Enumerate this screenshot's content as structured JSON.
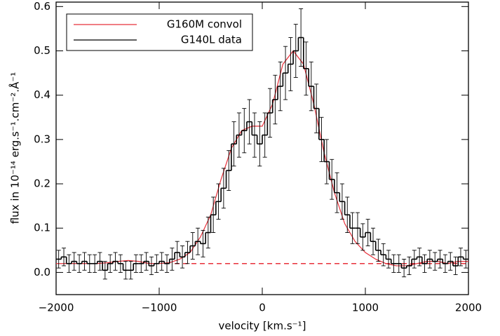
{
  "chart_data": {
    "type": "step",
    "xlabel": "velocity [km.s⁻¹]",
    "ylabel": "flux in 10⁻¹⁴ erg.s⁻¹.cm⁻².Å⁻¹",
    "xlim": [
      -2000,
      2000
    ],
    "ylim": [
      -0.05,
      0.61
    ],
    "xticks": [
      {
        "value": -2000,
        "label": "−2000"
      },
      {
        "value": -1000,
        "label": "−1000"
      },
      0,
      1000,
      2000
    ],
    "yticks": [
      {
        "value": 0,
        "label": "0.0"
      },
      0.1,
      0.2,
      0.3,
      0.4,
      0.5,
      0.6
    ],
    "legend": "upper left",
    "series": [
      {
        "name": "G160M convol",
        "color": "#e8303a",
        "type": "line",
        "x": [
          -2000,
          -1900,
          -1800,
          -1700,
          -1600,
          -1500,
          -1400,
          -1300,
          -1200,
          -1100,
          -1000,
          -900,
          -800,
          -700,
          -600,
          -500,
          -400,
          -300,
          -200,
          -100,
          0,
          100,
          200,
          300,
          400,
          500,
          600,
          700,
          800,
          900,
          1000,
          1100,
          1200,
          1300,
          1400,
          1500,
          1600,
          1700,
          1800,
          1900,
          2000
        ],
        "values": [
          0.02,
          0.02,
          0.02,
          0.02,
          0.02,
          0.022,
          0.025,
          0.027,
          0.025,
          0.02,
          0.02,
          0.022,
          0.03,
          0.045,
          0.08,
          0.13,
          0.21,
          0.28,
          0.32,
          0.33,
          0.33,
          0.38,
          0.47,
          0.5,
          0.47,
          0.38,
          0.27,
          0.18,
          0.11,
          0.07,
          0.045,
          0.03,
          0.02,
          0.015,
          0.015,
          0.02,
          0.025,
          0.025,
          0.02,
          0.025,
          0.025
        ]
      },
      {
        "name": "G140L data",
        "color": "#000000",
        "type": "step",
        "bins": [
          -2000,
          -1950,
          -1900,
          -1850,
          -1800,
          -1750,
          -1700,
          -1650,
          -1600,
          -1550,
          -1500,
          -1450,
          -1400,
          -1350,
          -1300,
          -1250,
          -1200,
          -1150,
          -1100,
          -1050,
          -1000,
          -950,
          -900,
          -850,
          -800,
          -750,
          -700,
          -650,
          -600,
          -550,
          -500,
          -450,
          -400,
          -350,
          -300,
          -250,
          -200,
          -150,
          -100,
          -50,
          0,
          50,
          100,
          150,
          200,
          250,
          300,
          350,
          400,
          450,
          500,
          550,
          600,
          650,
          700,
          750,
          800,
          850,
          900,
          950,
          1000,
          1050,
          1100,
          1150,
          1200,
          1250,
          1300,
          1350,
          1400,
          1450,
          1500,
          1550,
          1600,
          1650,
          1700,
          1750,
          1800,
          1850,
          1900,
          1950,
          2000
        ],
        "values": [
          0.03,
          0.035,
          0.02,
          0.025,
          0.02,
          0.025,
          0.02,
          0.02,
          0.025,
          0.005,
          0.02,
          0.025,
          0.02,
          0.005,
          0.005,
          0.02,
          0.02,
          0.025,
          0.015,
          0.02,
          0.025,
          0.02,
          0.03,
          0.045,
          0.035,
          0.045,
          0.06,
          0.07,
          0.065,
          0.09,
          0.13,
          0.16,
          0.19,
          0.23,
          0.29,
          0.31,
          0.32,
          0.34,
          0.31,
          0.29,
          0.31,
          0.36,
          0.39,
          0.42,
          0.45,
          0.47,
          0.5,
          0.53,
          0.46,
          0.42,
          0.37,
          0.3,
          0.25,
          0.21,
          0.18,
          0.16,
          0.13,
          0.1,
          0.1,
          0.08,
          0.09,
          0.07,
          0.05,
          0.04,
          0.03,
          0.02,
          0.02,
          0.01,
          0.015,
          0.03,
          0.035,
          0.02,
          0.03,
          0.025,
          0.03,
          0.02,
          0.025,
          0.015,
          0.035,
          0.03
        ],
        "errors": [
          0.02,
          0.02,
          0.02,
          0.02,
          0.02,
          0.02,
          0.02,
          0.02,
          0.02,
          0.02,
          0.02,
          0.02,
          0.02,
          0.02,
          0.02,
          0.02,
          0.02,
          0.02,
          0.02,
          0.02,
          0.02,
          0.02,
          0.025,
          0.025,
          0.025,
          0.025,
          0.03,
          0.03,
          0.03,
          0.035,
          0.04,
          0.04,
          0.045,
          0.045,
          0.05,
          0.05,
          0.05,
          0.05,
          0.05,
          0.05,
          0.05,
          0.055,
          0.055,
          0.055,
          0.06,
          0.06,
          0.06,
          0.065,
          0.06,
          0.055,
          0.055,
          0.05,
          0.05,
          0.045,
          0.045,
          0.04,
          0.04,
          0.035,
          0.035,
          0.03,
          0.03,
          0.03,
          0.025,
          0.025,
          0.02,
          0.02,
          0.02,
          0.02,
          0.02,
          0.02,
          0.02,
          0.02,
          0.02,
          0.02,
          0.02,
          0.02,
          0.02,
          0.02,
          0.02,
          0.02
        ]
      }
    ],
    "continuum": {
      "x": [
        -850,
        2000
      ],
      "values": [
        0.02,
        0.02
      ],
      "color": "#e8303a",
      "dashed": true
    }
  }
}
